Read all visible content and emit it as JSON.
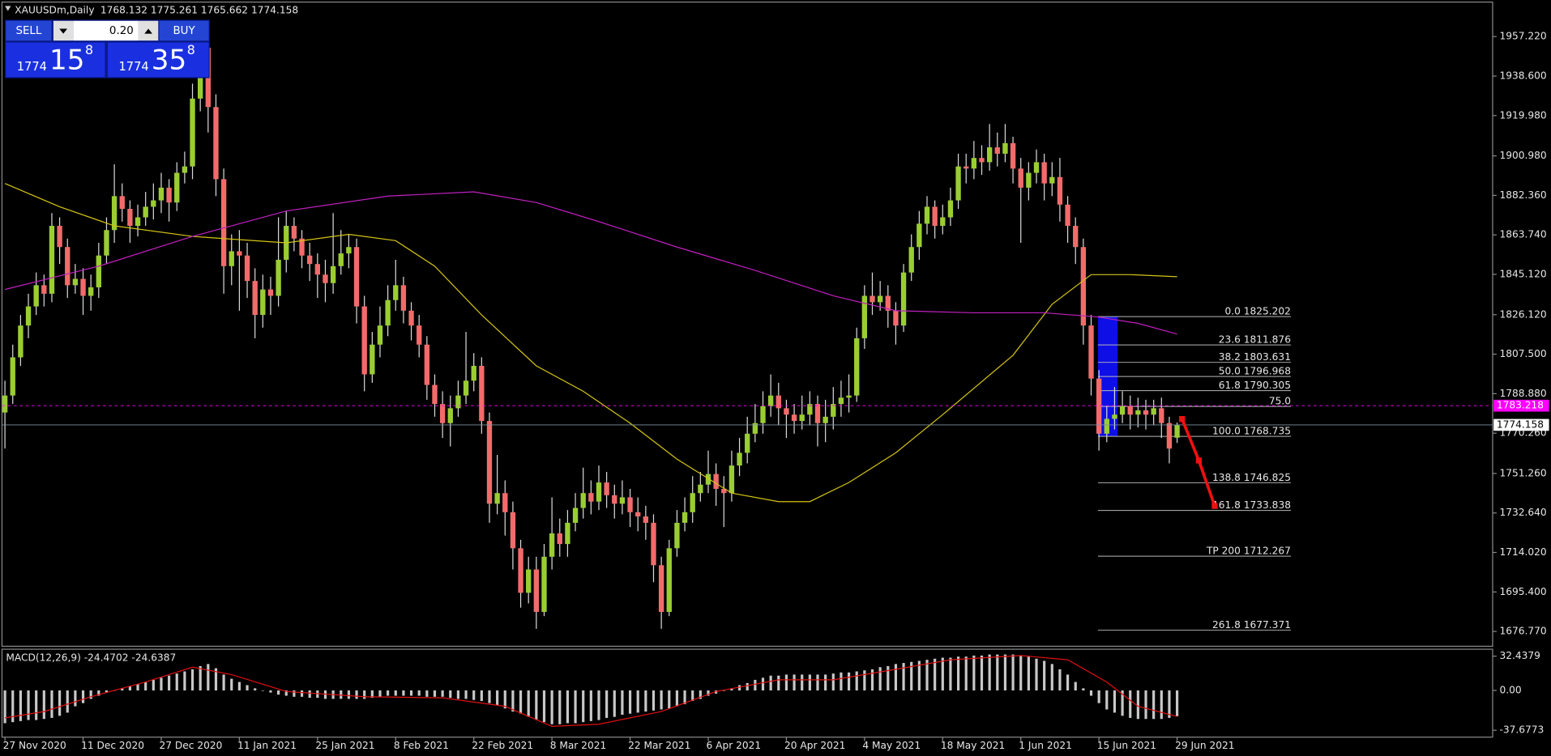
{
  "trade_panel": {
    "sell": "SELL",
    "buy": "BUY",
    "lot": "0.20",
    "bid": {
      "main": "1774",
      "big": "15",
      "sup": "8"
    },
    "ask": {
      "main": "1774",
      "big": "35",
      "sup": "8"
    }
  },
  "chart_data": [
    {
      "type": "candlestick",
      "title": "XAUUSDm,Daily",
      "ohlc_text": "1768.132 1775.261 1765.662 1774.158",
      "categories": [
        "27 Nov 2020",
        null,
        null,
        null,
        null,
        null,
        null,
        null,
        null,
        null,
        "11 Dec 2020",
        null,
        null,
        null,
        null,
        null,
        null,
        null,
        null,
        null,
        "27 Dec 2020",
        null,
        null,
        null,
        null,
        null,
        null,
        null,
        null,
        null,
        "11 Jan 2021",
        null,
        null,
        null,
        null,
        null,
        null,
        null,
        null,
        null,
        "25 Jan 2021",
        null,
        null,
        null,
        null,
        null,
        null,
        null,
        null,
        null,
        "8 Feb 2021",
        null,
        null,
        null,
        null,
        null,
        null,
        null,
        null,
        null,
        "22 Feb 2021",
        null,
        null,
        null,
        null,
        null,
        null,
        null,
        null,
        null,
        "8 Mar 2021",
        null,
        null,
        null,
        null,
        null,
        null,
        null,
        null,
        null,
        "22 Mar 2021",
        null,
        null,
        null,
        null,
        null,
        null,
        null,
        null,
        null,
        "6 Apr 2021",
        null,
        null,
        null,
        null,
        null,
        null,
        null,
        null,
        null,
        "20 Apr 2021",
        null,
        null,
        null,
        null,
        null,
        null,
        null,
        null,
        null,
        "4 May 2021",
        null,
        null,
        null,
        null,
        null,
        null,
        null,
        null,
        null,
        "18 May 2021",
        null,
        null,
        null,
        null,
        null,
        null,
        null,
        null,
        null,
        "1 Jun 2021",
        null,
        null,
        null,
        null,
        null,
        null,
        null,
        null,
        null,
        "15 Jun 2021",
        null,
        null,
        null,
        null,
        null,
        null,
        null,
        null,
        null,
        "29 Jun 2021"
      ],
      "open": [
        1780,
        1788,
        1806,
        1821,
        1830,
        1840,
        1836,
        1868,
        1858,
        1840,
        1843,
        1835,
        1839,
        1854,
        1866,
        1882,
        1876,
        1868,
        1872,
        1877,
        1880,
        1886,
        1879,
        1893,
        1896,
        1928,
        1952,
        1924,
        1890,
        1849,
        1856,
        1854,
        1842,
        1826,
        1838,
        1835,
        1852,
        1868,
        1862,
        1854,
        1850,
        1845,
        1841,
        1849,
        1855,
        1858,
        1830,
        1798,
        1812,
        1821,
        1833,
        1840,
        1828,
        1821,
        1812,
        1793,
        1784,
        1775,
        1782,
        1788,
        1795,
        1802,
        1776,
        1737,
        1742,
        1733,
        1716,
        1695,
        1706,
        1686,
        1712,
        1723,
        1718,
        1728,
        1735,
        1742,
        1738,
        1747,
        1741,
        1737,
        1740,
        1733,
        1731,
        1728,
        1708,
        1686,
        1716,
        1728,
        1733,
        1742,
        1746,
        1751,
        1744,
        1742,
        1755,
        1761,
        1770,
        1775,
        1783,
        1788,
        1782,
        1779,
        1776,
        1779,
        1784,
        1775,
        1778,
        1784,
        1787,
        1788,
        1815,
        1835,
        1832,
        1835,
        1828,
        1821,
        1846,
        1858,
        1869,
        1877,
        1868,
        1872,
        1880,
        1896,
        1895,
        1900,
        1898,
        1905,
        1902,
        1907,
        1895,
        1886,
        1893,
        1898,
        1888,
        1891,
        1878,
        1868,
        1858,
        1821,
        1796,
        1770,
        1777,
        1779,
        1783,
        1779,
        1781,
        1779,
        1782,
        1775,
        1768.132
      ],
      "high": [
        1795,
        1812,
        1826,
        1836,
        1846,
        1845,
        1874,
        1872,
        1862,
        1850,
        1848,
        1845,
        1860,
        1872,
        1897,
        1888,
        1880,
        1878,
        1884,
        1888,
        1893,
        1890,
        1898,
        1903,
        1935,
        1960,
        1956,
        1930,
        1895,
        1864,
        1866,
        1860,
        1848,
        1845,
        1844,
        1872,
        1875,
        1872,
        1866,
        1860,
        1855,
        1852,
        1874,
        1866,
        1864,
        1862,
        1835,
        1818,
        1830,
        1840,
        1852,
        1844,
        1832,
        1826,
        1816,
        1798,
        1790,
        1788,
        1795,
        1818,
        1808,
        1806,
        1780,
        1760,
        1748,
        1738,
        1720,
        1712,
        1712,
        1718,
        1740,
        1730,
        1734,
        1742,
        1754,
        1748,
        1755,
        1752,
        1746,
        1748,
        1744,
        1740,
        1736,
        1732,
        1712,
        1720,
        1734,
        1740,
        1750,
        1752,
        1762,
        1756,
        1750,
        1762,
        1768,
        1778,
        1784,
        1790,
        1798,
        1794,
        1786,
        1784,
        1788,
        1790,
        1788,
        1786,
        1792,
        1795,
        1798,
        1820,
        1840,
        1846,
        1842,
        1840,
        1832,
        1850,
        1864,
        1875,
        1882,
        1880,
        1878,
        1886,
        1902,
        1902,
        1908,
        1906,
        1916,
        1912,
        1916,
        1910,
        1900,
        1898,
        1904,
        1902,
        1898,
        1900,
        1882,
        1872,
        1862,
        1826,
        1800,
        1783,
        1792,
        1790,
        1788,
        1787,
        1786,
        1786,
        1787,
        1778,
        1775.261
      ],
      "low": [
        1763,
        1784,
        1802,
        1815,
        1826,
        1830,
        1832,
        1850,
        1834,
        1836,
        1826,
        1828,
        1834,
        1850,
        1860,
        1870,
        1860,
        1863,
        1868,
        1871,
        1874,
        1870,
        1875,
        1888,
        1890,
        1922,
        1912,
        1882,
        1836,
        1840,
        1828,
        1834,
        1815,
        1820,
        1826,
        1830,
        1846,
        1856,
        1848,
        1842,
        1834,
        1832,
        1836,
        1845,
        1848,
        1822,
        1790,
        1794,
        1806,
        1816,
        1828,
        1822,
        1814,
        1806,
        1786,
        1778,
        1768,
        1764,
        1778,
        1784,
        1790,
        1770,
        1728,
        1732,
        1722,
        1706,
        1688,
        1690,
        1678,
        1684,
        1706,
        1712,
        1712,
        1724,
        1730,
        1732,
        1734,
        1735,
        1730,
        1732,
        1726,
        1724,
        1720,
        1700,
        1678,
        1684,
        1712,
        1724,
        1728,
        1738,
        1742,
        1736,
        1726,
        1738,
        1750,
        1756,
        1766,
        1770,
        1778,
        1774,
        1768,
        1770,
        1772,
        1774,
        1764,
        1766,
        1772,
        1778,
        1780,
        1785,
        1810,
        1826,
        1828,
        1820,
        1812,
        1818,
        1842,
        1852,
        1864,
        1862,
        1864,
        1868,
        1876,
        1888,
        1890,
        1892,
        1894,
        1896,
        1898,
        1888,
        1860,
        1880,
        1888,
        1880,
        1882,
        1870,
        1860,
        1850,
        1812,
        1788,
        1762,
        1766,
        1772,
        1775,
        1772,
        1773,
        1772,
        1774,
        1768,
        1756,
        1765.662
      ],
      "close": [
        1788,
        1806,
        1821,
        1830,
        1840,
        1836,
        1868,
        1858,
        1840,
        1843,
        1835,
        1839,
        1854,
        1866,
        1882,
        1876,
        1868,
        1872,
        1877,
        1880,
        1886,
        1879,
        1893,
        1896,
        1928,
        1952,
        1924,
        1890,
        1849,
        1856,
        1854,
        1842,
        1826,
        1838,
        1835,
        1852,
        1868,
        1862,
        1854,
        1850,
        1845,
        1841,
        1849,
        1855,
        1858,
        1830,
        1798,
        1812,
        1821,
        1833,
        1840,
        1828,
        1821,
        1812,
        1793,
        1784,
        1775,
        1782,
        1788,
        1795,
        1802,
        1776,
        1737,
        1742,
        1733,
        1716,
        1695,
        1706,
        1686,
        1712,
        1723,
        1718,
        1728,
        1735,
        1742,
        1738,
        1747,
        1741,
        1737,
        1740,
        1733,
        1731,
        1728,
        1708,
        1686,
        1716,
        1728,
        1733,
        1742,
        1746,
        1751,
        1744,
        1742,
        1755,
        1761,
        1770,
        1775,
        1783,
        1788,
        1782,
        1779,
        1776,
        1779,
        1784,
        1775,
        1778,
        1784,
        1787,
        1788,
        1815,
        1835,
        1832,
        1835,
        1828,
        1821,
        1846,
        1858,
        1869,
        1877,
        1868,
        1872,
        1880,
        1896,
        1895,
        1900,
        1898,
        1905,
        1902,
        1907,
        1895,
        1886,
        1893,
        1898,
        1888,
        1891,
        1878,
        1868,
        1858,
        1821,
        1796,
        1770,
        1777,
        1779,
        1783,
        1779,
        1781,
        1779,
        1782,
        1775,
        1763,
        1774.158
      ],
      "up_color": "#9acd32",
      "down_color": "#f26b6b",
      "wick_color": "#d8d8d8",
      "overlays": [
        {
          "color": "#d4c414",
          "x": [
            0,
            7,
            14,
            24,
            36,
            44,
            50,
            55,
            61,
            68,
            74,
            80,
            86,
            93,
            99,
            103,
            108,
            114,
            120,
            129,
            134,
            139,
            144,
            150
          ],
          "values": [
            1888,
            1877,
            1868,
            1863,
            1860,
            1864,
            1861,
            1849,
            1826,
            1802,
            1790,
            1775,
            1758,
            1742,
            1738,
            1738,
            1747,
            1761,
            1779,
            1807,
            1831,
            1845,
            1845,
            1844
          ]
        },
        {
          "color": "#c020c0",
          "x": [
            0,
            12,
            24,
            36,
            49,
            60,
            68,
            76,
            86,
            96,
            106,
            114,
            124,
            133,
            140,
            145,
            150
          ],
          "values": [
            1838,
            1849,
            1863,
            1875,
            1882,
            1884,
            1879,
            1870,
            1858,
            1847,
            1835,
            1828,
            1827,
            1827,
            1825,
            1822,
            1817
          ]
        }
      ],
      "hlines": [
        {
          "value": 1783.218,
          "color": "#ff00ff",
          "dashed": true,
          "label_fill": "#ff00ff",
          "label_color": "#ffffff"
        },
        {
          "value": 1774.158,
          "color": "#7f8fa0",
          "dashed": false,
          "label_fill": "#ffffff",
          "label_color": "#000000"
        }
      ],
      "fib_levels": [
        {
          "label": "0.0 1825.202",
          "value": 1825.202
        },
        {
          "label": "23.6 1811.876",
          "value": 1811.876
        },
        {
          "label": "38.2 1803.631",
          "value": 1803.631
        },
        {
          "label": "50.0 1796.968",
          "value": 1796.968
        },
        {
          "label": "61.8 1790.305",
          "value": 1790.305
        },
        {
          "label": "75.0",
          "value": 1782.852
        },
        {
          "label": "100.0 1768.735",
          "value": 1768.735
        },
        {
          "label": "138.8 1746.825",
          "value": 1746.825
        },
        {
          "label": "161.8 1733.838",
          "value": 1733.838
        },
        {
          "label": "TP 200 1712.267",
          "value": 1712.267
        },
        {
          "label": "261.8 1677.371",
          "value": 1677.371
        }
      ],
      "fib_zone_color": "#1010ff",
      "ylim": [
        1669.8,
        1973.5
      ],
      "yticks": [
        {
          "value": 1957.22,
          "label": "1957.220"
        },
        {
          "value": 1938.6,
          "label": "1938.600"
        },
        {
          "value": 1919.98,
          "label": "1919.980"
        },
        {
          "value": 1900.98,
          "label": "1900.980"
        },
        {
          "value": 1882.36,
          "label": "1882.360"
        },
        {
          "value": 1863.74,
          "label": "1863.740"
        },
        {
          "value": 1845.12,
          "label": "1845.120"
        },
        {
          "value": 1826.12,
          "label": "1826.120"
        },
        {
          "value": 1807.5,
          "label": "1807.500"
        },
        {
          "value": 1788.88,
          "label": "1788.880"
        },
        {
          "value": 1770.26,
          "label": "1770.260"
        },
        {
          "value": 1751.26,
          "label": "1751.260"
        },
        {
          "value": 1732.64,
          "label": "1732.640"
        },
        {
          "value": 1714.02,
          "label": "1714.020"
        },
        {
          "value": 1695.4,
          "label": "1695.400"
        },
        {
          "value": 1676.77,
          "label": "1676.770"
        }
      ],
      "grid": false
    },
    {
      "type": "bar",
      "title": "MACD(12,26,9) -24.4702 -24.6387",
      "color": "#c8c8c8",
      "values": [
        -31,
        -30,
        -29,
        -28,
        -28,
        -27,
        -26,
        -24,
        -21,
        -15,
        -12,
        -8,
        -5,
        -2,
        0,
        2,
        4,
        6,
        8,
        10,
        12,
        14,
        16,
        18,
        20,
        23,
        25,
        21,
        15,
        11,
        8,
        5,
        2,
        0,
        -2,
        -4,
        -5,
        -6,
        -6,
        -7,
        -7,
        -8,
        -8,
        -8,
        -8,
        -8,
        -8,
        -7,
        -6,
        -5,
        -5,
        -5,
        -5,
        -5,
        -6,
        -6,
        -6,
        -7,
        -8,
        -8,
        -9,
        -10,
        -12,
        -14,
        -17,
        -20,
        -22,
        -25,
        -28,
        -30,
        -32,
        -32,
        -31,
        -31,
        -30,
        -29,
        -28,
        -26,
        -25,
        -23,
        -22,
        -21,
        -20,
        -19,
        -18,
        -17,
        -15,
        -13,
        -10,
        -8,
        -5,
        -3,
        0,
        2,
        5,
        7,
        10,
        12,
        14,
        14,
        15,
        15,
        15,
        15,
        15,
        15,
        16,
        17,
        17,
        18,
        19,
        20,
        22,
        23,
        25,
        26,
        27,
        28,
        29,
        30,
        31,
        31,
        32,
        32,
        33,
        33,
        34,
        34,
        34,
        34,
        33,
        32,
        30,
        28,
        25,
        20,
        15,
        8,
        2,
        -5,
        -12,
        -18,
        -21,
        -24,
        -26,
        -27,
        -27,
        -27,
        -27,
        -26,
        -24.4702
      ],
      "signal": {
        "color": "#e01010",
        "x": [
          0,
          5,
          11,
          18,
          24,
          29,
          36,
          46,
          56,
          64,
          70,
          76,
          84,
          91,
          99,
          106,
          114,
          121,
          130,
          136,
          141,
          145,
          150
        ],
        "values": [
          -26,
          -20,
          -6,
          8,
          22,
          15,
          -1,
          -6,
          -7,
          -15,
          -34,
          -32,
          -20,
          -1,
          10,
          10,
          20,
          29,
          33,
          29,
          8,
          -15,
          -24.6387
        ]
      },
      "ylim": [
        -44.2,
        39
      ],
      "yticks": [
        32.4379,
        {
          "value": 0,
          "label": "0.00"
        },
        -37.6773
      ]
    }
  ]
}
